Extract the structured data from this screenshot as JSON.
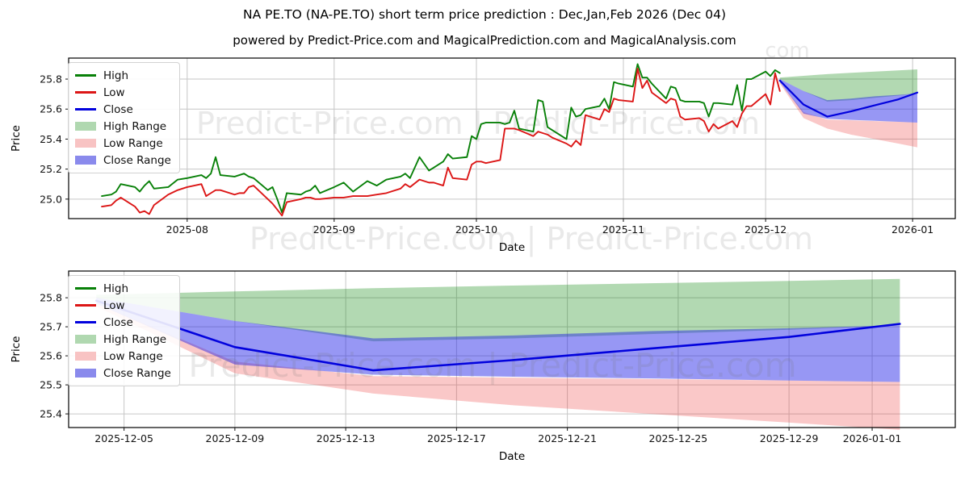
{
  "title": "NA PE.TO (NA-PE.TO) short term price prediction : Dec,Jan,Feb 2026 (Dec 04)",
  "subtitle": "powered by Predict-Price.com and MagicalPrediction.com and MagicalAnalysis.com",
  "watermark": {
    "text": "Predict-Price.com | Predict-Price.com",
    "fragment": "com",
    "color": "#777777",
    "opacity": 0.16
  },
  "colors": {
    "high_line": "#088008",
    "low_line": "#dc1616",
    "close_line": "#0202dd",
    "high_range_fill": "rgba(0,128,0,0.30)",
    "low_range_fill": "rgba(235,50,50,0.27)",
    "close_range_fill": "rgba(25,25,230,0.45)",
    "high_range_swatch": "#b0d8b0",
    "low_range_swatch": "#f8c3c3",
    "close_range_swatch": "#8a8aec",
    "grid": "#c6c6c6",
    "spine": "#000000",
    "tick_text": "#111111"
  },
  "legend": [
    {
      "label": "High",
      "type": "line",
      "color": "#088008"
    },
    {
      "label": "Low",
      "type": "line",
      "color": "#dc1616"
    },
    {
      "label": "Close",
      "type": "line",
      "color": "#0202dd"
    },
    {
      "label": "High Range",
      "type": "fill",
      "color": "#b0d8b0"
    },
    {
      "label": "Low Range",
      "type": "fill",
      "color": "#f8c3c3"
    },
    {
      "label": "Close Range",
      "type": "fill",
      "color": "#8a8aec"
    }
  ],
  "chart_data": {
    "type": "line",
    "title": "NA PE.TO (NA-PE.TO) short term price prediction : Dec,Jan,Feb 2026 (Dec 04)",
    "legend_position": "upper left",
    "grid": true,
    "history": {
      "comment": "daily High/Low of NA-PE.TO, points = [date, high, low]",
      "points": [
        [
          "2025-07-14",
          25.02,
          24.95
        ],
        [
          "2025-07-16",
          25.03,
          24.96
        ],
        [
          "2025-07-17",
          25.05,
          24.99
        ],
        [
          "2025-07-18",
          25.1,
          25.01
        ],
        [
          "2025-07-21",
          25.08,
          24.95
        ],
        [
          "2025-07-22",
          25.05,
          24.91
        ],
        [
          "2025-07-23",
          25.09,
          24.92
        ],
        [
          "2025-07-24",
          25.12,
          24.9
        ],
        [
          "2025-07-25",
          25.07,
          24.96
        ],
        [
          "2025-07-28",
          25.08,
          25.03
        ],
        [
          "2025-07-30",
          25.13,
          25.06
        ],
        [
          "2025-08-01",
          25.14,
          25.08
        ],
        [
          "2025-08-04",
          25.16,
          25.1
        ],
        [
          "2025-08-05",
          25.14,
          25.02
        ],
        [
          "2025-08-06",
          25.17,
          25.04
        ],
        [
          "2025-08-07",
          25.28,
          25.06
        ],
        [
          "2025-08-08",
          25.16,
          25.06
        ],
        [
          "2025-08-11",
          25.15,
          25.03
        ],
        [
          "2025-08-12",
          25.16,
          25.04
        ],
        [
          "2025-08-13",
          25.17,
          25.04
        ],
        [
          "2025-08-14",
          25.15,
          25.08
        ],
        [
          "2025-08-15",
          25.14,
          25.09
        ],
        [
          "2025-08-18",
          25.06,
          25.0
        ],
        [
          "2025-08-19",
          25.08,
          24.97
        ],
        [
          "2025-08-20",
          25.0,
          24.93
        ],
        [
          "2025-08-21",
          24.91,
          24.89
        ],
        [
          "2025-08-22",
          25.04,
          24.98
        ],
        [
          "2025-08-25",
          25.03,
          25.0
        ],
        [
          "2025-08-26",
          25.05,
          25.01
        ],
        [
          "2025-08-27",
          25.06,
          25.01
        ],
        [
          "2025-08-28",
          25.09,
          25.0
        ],
        [
          "2025-08-29",
          25.04,
          25.0
        ],
        [
          "2025-09-01",
          25.08,
          25.01
        ],
        [
          "2025-09-03",
          25.11,
          25.01
        ],
        [
          "2025-09-05",
          25.05,
          25.02
        ],
        [
          "2025-09-08",
          25.12,
          25.02
        ],
        [
          "2025-09-10",
          25.09,
          25.03
        ],
        [
          "2025-09-12",
          25.13,
          25.04
        ],
        [
          "2025-09-15",
          25.15,
          25.07
        ],
        [
          "2025-09-16",
          25.17,
          25.1
        ],
        [
          "2025-09-17",
          25.14,
          25.08
        ],
        [
          "2025-09-19",
          25.28,
          25.13
        ],
        [
          "2025-09-21",
          25.19,
          25.11
        ],
        [
          "2025-09-22",
          25.21,
          25.11
        ],
        [
          "2025-09-24",
          25.25,
          25.09
        ],
        [
          "2025-09-25",
          25.3,
          25.21
        ],
        [
          "2025-09-26",
          25.27,
          25.14
        ],
        [
          "2025-09-29",
          25.28,
          25.13
        ],
        [
          "2025-09-30",
          25.42,
          25.23
        ],
        [
          "2025-10-01",
          25.4,
          25.25
        ],
        [
          "2025-10-02",
          25.5,
          25.25
        ],
        [
          "2025-10-03",
          25.51,
          25.24
        ],
        [
          "2025-10-06",
          25.51,
          25.26
        ],
        [
          "2025-10-07",
          25.5,
          25.47
        ],
        [
          "2025-10-08",
          25.51,
          25.47
        ],
        [
          "2025-10-09",
          25.59,
          25.47
        ],
        [
          "2025-10-10",
          25.47,
          25.46
        ],
        [
          "2025-10-13",
          25.45,
          25.42
        ],
        [
          "2025-10-14",
          25.66,
          25.45
        ],
        [
          "2025-10-15",
          25.65,
          25.44
        ],
        [
          "2025-10-16",
          25.48,
          25.43
        ],
        [
          "2025-10-17",
          25.46,
          25.41
        ],
        [
          "2025-10-20",
          25.4,
          25.37
        ],
        [
          "2025-10-21",
          25.61,
          25.35
        ],
        [
          "2025-10-22",
          25.55,
          25.39
        ],
        [
          "2025-10-23",
          25.56,
          25.36
        ],
        [
          "2025-10-24",
          25.6,
          25.56
        ],
        [
          "2025-10-27",
          25.62,
          25.53
        ],
        [
          "2025-10-28",
          25.67,
          25.6
        ],
        [
          "2025-10-29",
          25.6,
          25.58
        ],
        [
          "2025-10-30",
          25.78,
          25.67
        ],
        [
          "2025-10-31",
          25.77,
          25.66
        ],
        [
          "2025-11-03",
          25.75,
          25.65
        ],
        [
          "2025-11-04",
          25.9,
          25.87
        ],
        [
          "2025-11-05",
          25.81,
          25.74
        ],
        [
          "2025-11-06",
          25.81,
          25.79
        ],
        [
          "2025-11-07",
          25.77,
          25.71
        ],
        [
          "2025-11-10",
          25.67,
          25.64
        ],
        [
          "2025-11-11",
          25.75,
          25.67
        ],
        [
          "2025-11-12",
          25.74,
          25.66
        ],
        [
          "2025-11-13",
          25.66,
          25.55
        ],
        [
          "2025-11-14",
          25.65,
          25.53
        ],
        [
          "2025-11-17",
          25.65,
          25.54
        ],
        [
          "2025-11-18",
          25.64,
          25.52
        ],
        [
          "2025-11-19",
          25.55,
          25.45
        ],
        [
          "2025-11-20",
          25.64,
          25.5
        ],
        [
          "2025-11-21",
          25.64,
          25.47
        ],
        [
          "2025-11-24",
          25.63,
          25.52
        ],
        [
          "2025-11-25",
          25.76,
          25.48
        ],
        [
          "2025-11-26",
          25.59,
          25.57
        ],
        [
          "2025-11-27",
          25.8,
          25.62
        ],
        [
          "2025-11-28",
          25.8,
          25.62
        ],
        [
          "2025-12-01",
          25.85,
          25.7
        ],
        [
          "2025-12-02",
          25.82,
          25.63
        ],
        [
          "2025-12-03",
          25.86,
          25.84
        ],
        [
          "2025-12-04",
          25.84,
          25.72
        ]
      ]
    },
    "prediction": {
      "comment": "forecast Dec 04 2025 - Jan 02 2026; bands are [lower,upper]",
      "dates": [
        "2025-12-04",
        "2025-12-09",
        "2025-12-14",
        "2025-12-19",
        "2025-12-24",
        "2025-12-29",
        "2026-01-02"
      ],
      "close": [
        25.79,
        25.63,
        25.55,
        25.585,
        25.625,
        25.665,
        25.71
      ],
      "close_lower": [
        25.78,
        25.57,
        25.535,
        25.528,
        25.522,
        25.515,
        25.51
      ],
      "close_upper": [
        25.8,
        25.72,
        25.66,
        25.67,
        25.685,
        25.695,
        25.705
      ],
      "high_lower": [
        25.8,
        25.72,
        25.65,
        25.66,
        25.675,
        25.69,
        25.705
      ],
      "high_upper": [
        25.81,
        25.822,
        25.833,
        25.842,
        25.85,
        25.858,
        25.865
      ],
      "low_lower": [
        25.77,
        25.54,
        25.47,
        25.43,
        25.4,
        25.37,
        25.345
      ],
      "low_upper": [
        25.78,
        25.58,
        25.53,
        25.525,
        25.52,
        25.515,
        25.51
      ]
    },
    "charts": [
      {
        "name": "full-range-chart",
        "xlabel": "Date",
        "ylabel": "Price",
        "x_domain": [
          "2025-07-07",
          "2026-01-10"
        ],
        "y_domain": [
          24.87,
          25.94
        ],
        "xticks": [
          {
            "date": "2025-08-01",
            "label": "2025-08"
          },
          {
            "date": "2025-09-01",
            "label": "2025-09"
          },
          {
            "date": "2025-10-01",
            "label": "2025-10"
          },
          {
            "date": "2025-11-01",
            "label": "2025-11"
          },
          {
            "date": "2025-12-01",
            "label": "2025-12"
          },
          {
            "date": "2026-01-01",
            "label": "2026-01"
          }
        ],
        "yticks": [
          {
            "v": 25.0,
            "label": "25.0"
          },
          {
            "v": 25.2,
            "label": "25.2"
          },
          {
            "v": 25.4,
            "label": "25.4"
          },
          {
            "v": 25.6,
            "label": "25.6"
          },
          {
            "v": 25.8,
            "label": "25.8"
          }
        ]
      },
      {
        "name": "prediction-zoom-chart",
        "xlabel": "Date",
        "ylabel": "Price",
        "x_domain": [
          "2025-12-03",
          "2026-01-04"
        ],
        "y_domain": [
          25.353,
          25.892
        ],
        "xticks": [
          {
            "date": "2025-12-05",
            "label": "2025-12-05"
          },
          {
            "date": "2025-12-09",
            "label": "2025-12-09"
          },
          {
            "date": "2025-12-13",
            "label": "2025-12-13"
          },
          {
            "date": "2025-12-17",
            "label": "2025-12-17"
          },
          {
            "date": "2025-12-21",
            "label": "2025-12-21"
          },
          {
            "date": "2025-12-25",
            "label": "2025-12-25"
          },
          {
            "date": "2025-12-29",
            "label": "2025-12-29"
          },
          {
            "date": "2026-01-01",
            "label": "2026-01-01"
          }
        ],
        "yticks": [
          {
            "v": 25.4,
            "label": "25.4"
          },
          {
            "v": 25.5,
            "label": "25.5"
          },
          {
            "v": 25.6,
            "label": "25.6"
          },
          {
            "v": 25.7,
            "label": "25.7"
          },
          {
            "v": 25.8,
            "label": "25.8"
          }
        ]
      }
    ]
  }
}
